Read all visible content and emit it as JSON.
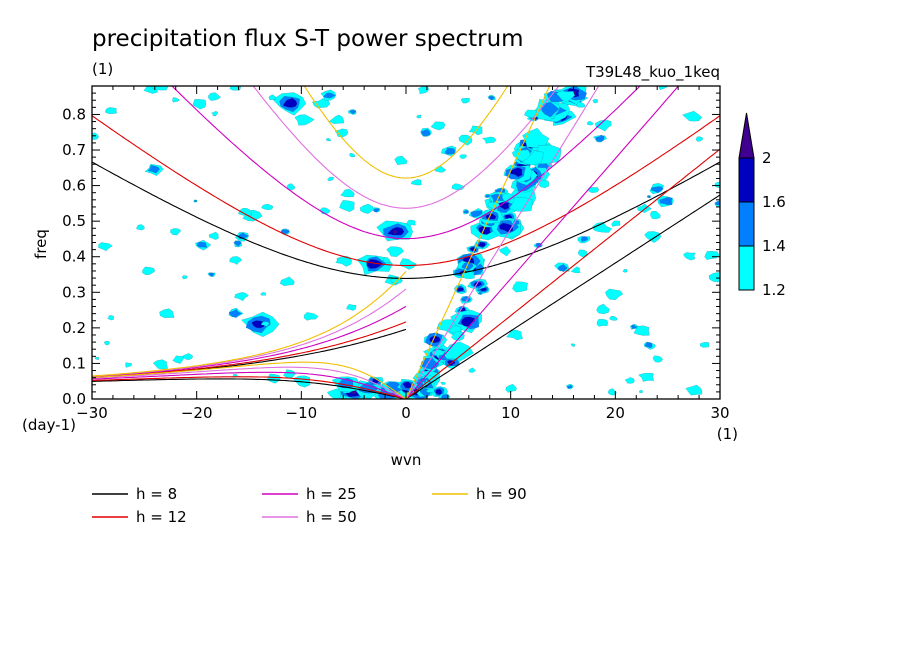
{
  "chart_data": {
    "type": "heatmap",
    "title": "precipitation flux S-T power spectrum",
    "subtitle_left": "(1)",
    "subtitle_right": "T39L48_kuo_1keq",
    "xlabel": "wvn",
    "ylabel": "freq",
    "x_unit_label": "(1)",
    "y_unit_label": "(day-1)",
    "xlim": [
      -30,
      30
    ],
    "ylim": [
      0,
      0.88
    ],
    "x_ticks": [
      -30,
      -20,
      -10,
      0,
      10,
      20,
      30
    ],
    "x_tick_labels": [
      "-30",
      "-20",
      "-10",
      "0",
      "10",
      "20",
      "30"
    ],
    "y_ticks": [
      0,
      0.1,
      0.2,
      0.3,
      0.4,
      0.5,
      0.6,
      0.7,
      0.8
    ],
    "y_tick_labels": [
      "0.0",
      "0.1",
      "0.2",
      "0.3",
      "0.4",
      "0.5",
      "0.6",
      "0.7",
      "0.8"
    ],
    "colorbar": {
      "levels": [
        1.2,
        1.4,
        1.6,
        2
      ],
      "labels": [
        "1.2",
        "1.4",
        "1.6",
        "2"
      ],
      "colors": [
        "#00ffff",
        "#0080ff",
        "#0000c0",
        "#400090"
      ]
    },
    "series": [
      {
        "name": "h = 8",
        "h": 8,
        "color": "#000000"
      },
      {
        "name": "h = 12",
        "h": 12,
        "color": "#e00000"
      },
      {
        "name": "h = 25",
        "h": 25,
        "color": "#d000c0"
      },
      {
        "name": "h = 50",
        "h": 50,
        "color": "#e070e0"
      },
      {
        "name": "h = 90",
        "h": 90,
        "color": "#f0c000"
      }
    ],
    "power_regions": [
      {
        "kind": "kelvin-band",
        "x": [
          0,
          16
        ],
        "y": [
          0.0,
          0.88
        ],
        "max_level": 2
      },
      {
        "kind": "patch",
        "x": 1,
        "y": 0.02,
        "level": 2
      },
      {
        "kind": "patch",
        "x": -5,
        "y": 0.02,
        "level": 2
      },
      {
        "kind": "patch",
        "x": -1,
        "y": 0.47,
        "level": 2
      },
      {
        "kind": "patch",
        "x": -3,
        "y": 0.38,
        "level": 1.6
      },
      {
        "kind": "patch",
        "x": -11,
        "y": 0.83,
        "level": 1.6
      },
      {
        "kind": "patch",
        "x": -14,
        "y": 0.21,
        "level": 1.6
      },
      {
        "kind": "patch",
        "x": 16,
        "y": 0.86,
        "level": 2
      }
    ]
  }
}
